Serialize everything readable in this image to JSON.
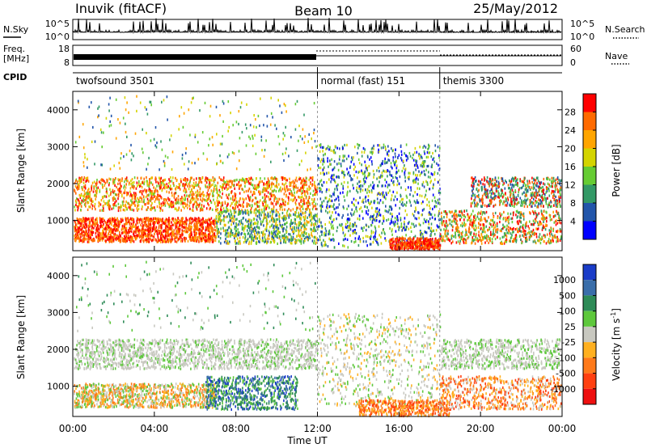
{
  "header": {
    "station": "Inuvik (fitACF)",
    "beam": "Beam 10",
    "date": "25/May/2012"
  },
  "noise_panel": {
    "left_label": "N.Sky",
    "right_label": "N.Search",
    "left_ticks": [
      "10^5",
      "10^0"
    ],
    "right_ticks": [
      "10^5",
      "10^0"
    ]
  },
  "freq_panel": {
    "left_label_1": "Freq.",
    "left_label_2": "[MHz]",
    "right_label": "Nave",
    "left_ticks": [
      "18",
      "8"
    ],
    "right_ticks": [
      "60",
      "0"
    ]
  },
  "cpid_panel": {
    "label": "CPID",
    "modes": [
      {
        "name": "twofsound 3501",
        "start_hour": 0
      },
      {
        "name": "normal (fast) 151",
        "start_hour": 12
      },
      {
        "name": "themis 3300",
        "start_hour": 18
      }
    ]
  },
  "chart_data": [
    {
      "type": "heatmap",
      "name": "power",
      "ylabel": "Slant Range [km]",
      "yticks": [
        1000,
        2000,
        3000,
        4000
      ],
      "ylim": [
        180,
        4500
      ],
      "colorbar_label": "Power [dB]",
      "colorbar_ticks": [
        "28",
        "24",
        "20",
        "16",
        "12",
        "8",
        "4"
      ],
      "colorbar_colors": [
        "#ff0000",
        "#ff6a00",
        "#ffa500",
        "#d4d400",
        "#66cc33",
        "#339966",
        "#2255aa",
        "#0000ff"
      ]
    },
    {
      "type": "heatmap",
      "name": "velocity",
      "ylabel": "Slant Range [km]",
      "yticks": [
        1000,
        2000,
        3000,
        4000
      ],
      "ylim": [
        180,
        4500
      ],
      "colorbar_label": "Velocity [m s",
      "colorbar_label_sup": "-1",
      "colorbar_label_end": "]",
      "colorbar_ticks": [
        "1000",
        "500",
        "100",
        "25",
        "-25",
        "-100",
        "-500",
        "-1000"
      ],
      "colorbar_colors": [
        "#1a3cc8",
        "#3a6eaa",
        "#2e8b57",
        "#5ec83c",
        "#c8c8c0",
        "#ffb020",
        "#ff7a1a",
        "#ff4010",
        "#ee1010"
      ]
    }
  ],
  "time_axis": {
    "ticks": [
      "00:00",
      "04:00",
      "08:00",
      "12:00",
      "16:00",
      "20:00",
      "00:00"
    ],
    "label": "Time UT",
    "range_hours": [
      0,
      24
    ]
  }
}
